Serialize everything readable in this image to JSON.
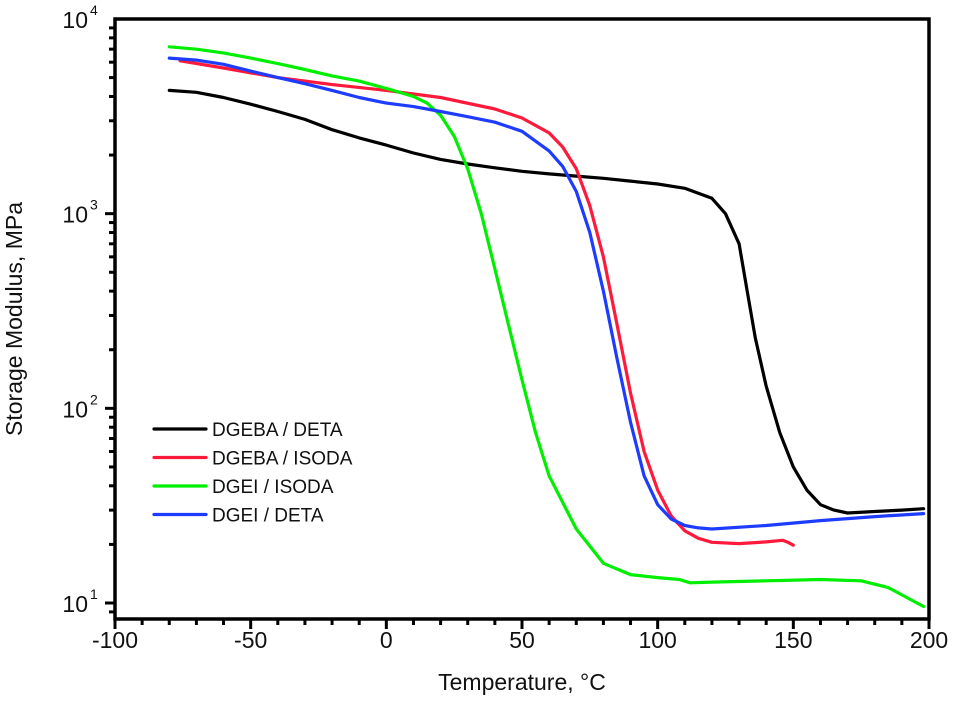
{
  "chart_data": {
    "type": "line",
    "title": "",
    "xlabel": "Temperature, °C",
    "ylabel": "Storage Modulus, MPa",
    "xlim": [
      -100,
      200
    ],
    "ylim": [
      9,
      10000
    ],
    "yscale": "log",
    "x_ticks": [
      -100,
      -50,
      0,
      50,
      100,
      150,
      200
    ],
    "x_tick_labels": [
      "-100",
      "-50",
      "0",
      "50",
      "100",
      "150",
      "200"
    ],
    "y_ticks": [
      {
        "value": 10,
        "base": "10",
        "exp": "1"
      },
      {
        "value": 100,
        "base": "10",
        "exp": "2"
      },
      {
        "value": 1000,
        "base": "10",
        "exp": "3"
      },
      {
        "value": 10000,
        "base": "10",
        "exp": "4"
      }
    ],
    "grid": false,
    "legend_position": "lower-left",
    "series": [
      {
        "name": "DGEBA / DETA",
        "color": "#000000",
        "x": [
          -80,
          -70,
          -60,
          -50,
          -40,
          -30,
          -20,
          -10,
          0,
          10,
          20,
          30,
          40,
          50,
          60,
          70,
          80,
          90,
          100,
          110,
          120,
          125,
          130,
          133,
          136,
          140,
          145,
          150,
          155,
          160,
          165,
          170,
          180,
          190,
          198
        ],
        "y": [
          4300,
          4200,
          3950,
          3650,
          3350,
          3050,
          2700,
          2450,
          2250,
          2050,
          1900,
          1800,
          1720,
          1650,
          1600,
          1560,
          1520,
          1470,
          1420,
          1350,
          1200,
          1000,
          700,
          400,
          230,
          130,
          75,
          50,
          38,
          32,
          30,
          29,
          29.5,
          30,
          30.5
        ]
      },
      {
        "name": "DGEBA / ISODA",
        "color": "#ff1a3c",
        "x": [
          -76,
          -60,
          -40,
          -20,
          0,
          20,
          40,
          50,
          60,
          65,
          70,
          75,
          80,
          85,
          90,
          95,
          100,
          105,
          110,
          115,
          120,
          130,
          140,
          146,
          148,
          150
        ],
        "y": [
          6100,
          5600,
          5000,
          4600,
          4300,
          3950,
          3450,
          3100,
          2600,
          2200,
          1700,
          1100,
          600,
          270,
          120,
          60,
          38,
          28,
          23.5,
          21.5,
          20.5,
          20.2,
          20.6,
          21,
          20.5,
          19.8
        ]
      },
      {
        "name": "DGEI / ISODA",
        "color": "#00ee00",
        "x": [
          -80,
          -70,
          -60,
          -50,
          -40,
          -30,
          -20,
          -10,
          0,
          10,
          15,
          20,
          25,
          30,
          35,
          40,
          45,
          50,
          55,
          60,
          70,
          80,
          90,
          100,
          108,
          112,
          120,
          140,
          160,
          175,
          185,
          198
        ],
        "y": [
          7200,
          7000,
          6700,
          6300,
          5900,
          5500,
          5100,
          4800,
          4400,
          4000,
          3700,
          3200,
          2500,
          1700,
          1000,
          520,
          270,
          140,
          75,
          45,
          24,
          16,
          14,
          13.5,
          13.2,
          12.7,
          12.8,
          13,
          13.2,
          13,
          12,
          9.6
        ]
      },
      {
        "name": "DGEI / DETA",
        "color": "#1e3cff",
        "x": [
          -80,
          -70,
          -60,
          -50,
          -40,
          -30,
          -20,
          -10,
          0,
          10,
          20,
          30,
          40,
          50,
          60,
          65,
          70,
          75,
          80,
          85,
          90,
          95,
          100,
          105,
          110,
          115,
          120,
          140,
          160,
          180,
          198
        ],
        "y": [
          6300,
          6150,
          5850,
          5400,
          5000,
          4650,
          4300,
          3950,
          3700,
          3550,
          3350,
          3150,
          2950,
          2650,
          2100,
          1750,
          1300,
          800,
          400,
          180,
          85,
          45,
          32,
          27,
          25,
          24.3,
          24,
          25,
          26.5,
          27.8,
          28.8
        ]
      }
    ]
  }
}
